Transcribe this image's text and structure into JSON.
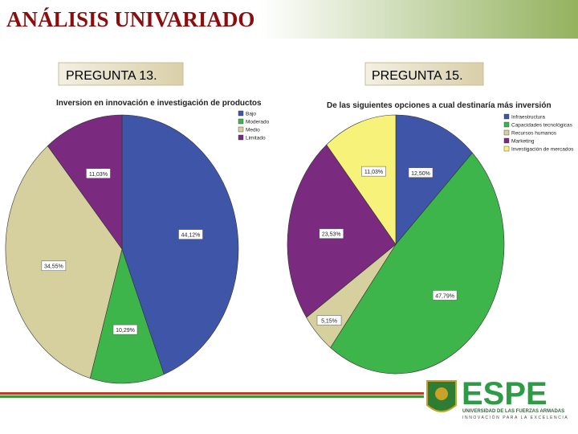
{
  "slide_title": "ANÁLISIS UNIVARIADO",
  "questions": [
    "PREGUNTA 13.",
    "PREGUNTA 15."
  ],
  "logo": {
    "name": "ESPE",
    "subtitle": "UNIVERSIDAD DE LAS FUERZAS ARMADAS",
    "motto": "INNOVACIÓN PARA LA EXCELENCIA"
  },
  "chart_data": [
    {
      "type": "pie",
      "title": "Inversion en innovación e investigación de productos",
      "categories": [
        "Bajo",
        "Moderado",
        "Medio",
        "Limitado"
      ],
      "values": [
        44.12,
        10.29,
        34.55,
        11.03
      ],
      "value_labels": [
        "44,12%",
        "10,29%",
        "34,55%",
        "11,03%"
      ],
      "colors": [
        "#3f56a8",
        "#3db54a",
        "#d5d09e",
        "#7a2a7f"
      ]
    },
    {
      "type": "pie",
      "title": "De las siguientes opciones a cual destinaría más inversión",
      "categories": [
        "Infraestructura",
        "Capacidades tecnológicas",
        "Recursos humanos",
        "Marketing",
        "Investigación de mercados"
      ],
      "values": [
        12.5,
        47.79,
        5.15,
        23.53,
        11.03
      ],
      "value_labels": [
        "12,50%",
        "47,79%",
        "5,15%",
        "23,53%",
        "11,03%"
      ],
      "colors": [
        "#3f56a8",
        "#3db54a",
        "#d5d09e",
        "#7a2a7f",
        "#f7f27a"
      ]
    }
  ]
}
